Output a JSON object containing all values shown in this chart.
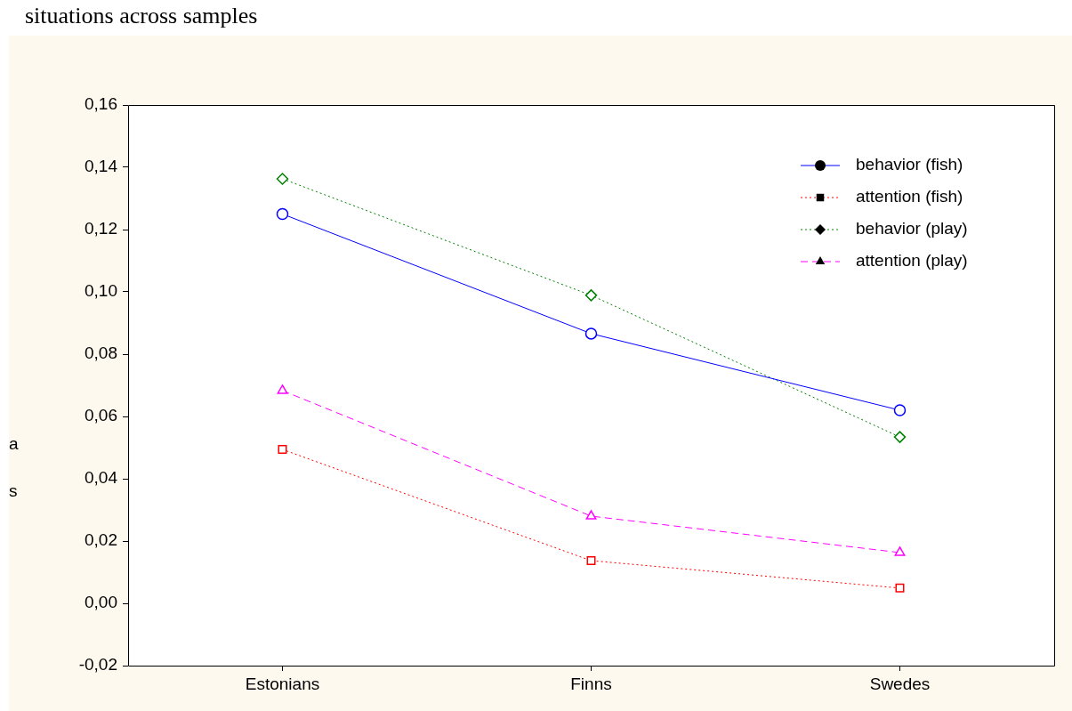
{
  "chart_data": {
    "type": "line",
    "title": "situations across samples",
    "annotations": [
      "a",
      "s"
    ],
    "categories": [
      "Estonians",
      "Finns",
      "Swedes"
    ],
    "series": [
      {
        "name": "behavior (fish)",
        "color": "#0000ff",
        "values": [
          0.125,
          0.0866,
          0.062
        ],
        "marker": "circle",
        "line_style": "solid"
      },
      {
        "name": "attention (fish)",
        "color": "#ff0000",
        "values": [
          0.0494,
          0.0137,
          0.0049
        ],
        "marker": "square",
        "line_style": "dotted"
      },
      {
        "name": "behavior (play)",
        "color": "#008000",
        "values": [
          0.1363,
          0.0989,
          0.0534
        ],
        "marker": "diamond",
        "line_style": "dotted"
      },
      {
        "name": "attention (play)",
        "color": "#ff00ff",
        "values": [
          0.0683,
          0.028,
          0.0163
        ],
        "marker": "triangle",
        "line_style": "dashed"
      }
    ],
    "ylim": [
      -0.02,
      0.16
    ],
    "yticks": [
      {
        "value": -0.02,
        "label": "-0,02"
      },
      {
        "value": 0,
        "label": "0,00"
      },
      {
        "value": 0.02,
        "label": "0,02"
      },
      {
        "value": 0.04,
        "label": "0,04"
      },
      {
        "value": 0.06,
        "label": "0,06"
      },
      {
        "value": 0.08,
        "label": "0,08"
      },
      {
        "value": 0.1,
        "label": "0,10"
      },
      {
        "value": 0.12,
        "label": "0,12"
      },
      {
        "value": 0.14,
        "label": "0,14"
      },
      {
        "value": 0.16,
        "label": "0,16"
      }
    ],
    "grid": false,
    "legend": "top right"
  }
}
